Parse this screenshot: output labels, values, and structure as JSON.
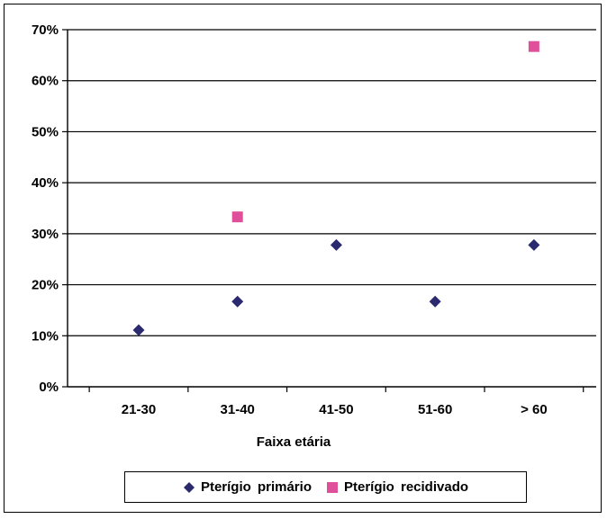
{
  "chart_data": {
    "type": "scatter",
    "categories": [
      "21-30",
      "31-40",
      "41-50",
      "51-60",
      "> 60"
    ],
    "xlabel": "Faixa etária",
    "ylabel": "",
    "ylim": [
      0,
      70
    ],
    "y_ticks": [
      "0%",
      "10%",
      "20%",
      "30%",
      "40%",
      "50%",
      "60%",
      "70%"
    ],
    "grid": true,
    "legend_position": "bottom",
    "series": [
      {
        "name": "Pterígio primário",
        "marker": "diamond",
        "color": "#2b2a6e",
        "values": [
          11.1,
          16.7,
          27.8,
          16.7,
          27.8
        ]
      },
      {
        "name": "Pterígio recidivado",
        "marker": "square",
        "color": "#e0509a",
        "values": [
          null,
          33.3,
          null,
          null,
          66.7
        ]
      }
    ]
  }
}
